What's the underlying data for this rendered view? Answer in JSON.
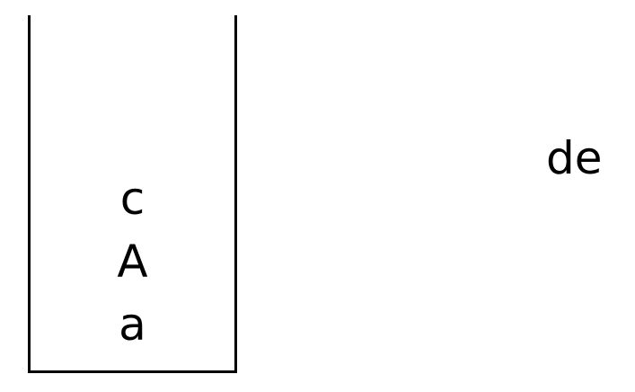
{
  "stack": {
    "items_top_to_bottom": [
      "c",
      "A",
      "a"
    ]
  },
  "remaining_input": "de"
}
